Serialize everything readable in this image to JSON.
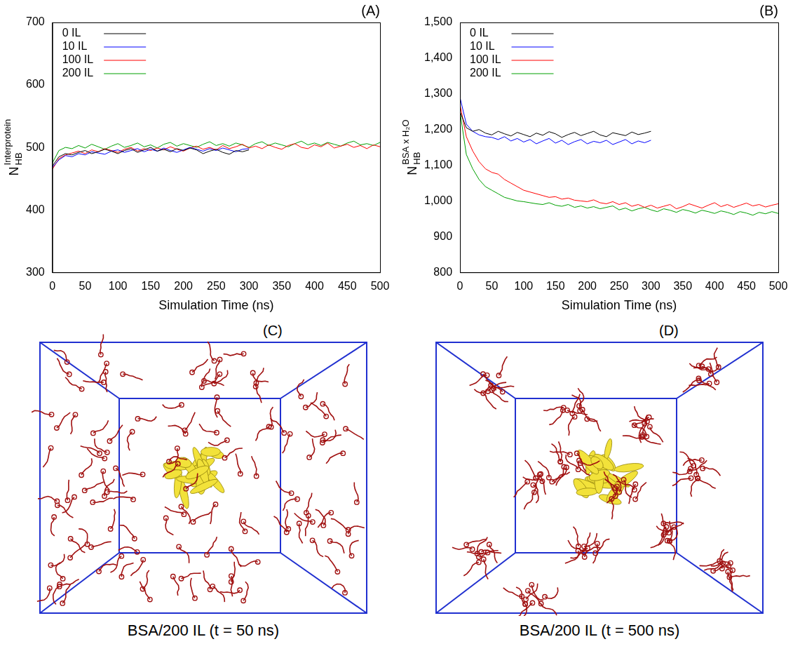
{
  "chart_data": [
    {
      "panel_label": "(A)",
      "type": "line",
      "x_label": "Simulation Time (ns)",
      "y_label": {
        "base": "N",
        "sub": "HB",
        "sup": "Interprotein"
      },
      "x": [
        0,
        10,
        20,
        30,
        40,
        50,
        60,
        70,
        80,
        90,
        100,
        110,
        120,
        130,
        140,
        150,
        160,
        170,
        180,
        190,
        200,
        210,
        220,
        230,
        240,
        250,
        260,
        270,
        280,
        290,
        300,
        310,
        320,
        330,
        340,
        350,
        360,
        370,
        380,
        390,
        400,
        410,
        420,
        430,
        440,
        450,
        460,
        470,
        480,
        490,
        500
      ],
      "xlim": [
        0,
        500
      ],
      "xticks": [
        0,
        50,
        100,
        150,
        200,
        250,
        300,
        350,
        400,
        450,
        500
      ],
      "ylim": [
        300,
        700
      ],
      "yticks": [
        300,
        400,
        500,
        600,
        700
      ],
      "grid": false,
      "legend": "top-left",
      "series": [
        {
          "name": "0 IL",
          "color": "#000000",
          "values": [
            470,
            485,
            490,
            488,
            492,
            495,
            490,
            493,
            497,
            494,
            490,
            495,
            498,
            492,
            496,
            500,
            494,
            497,
            493,
            498,
            495,
            499,
            496,
            490,
            494,
            497,
            492,
            489,
            495,
            493,
            496,
            null,
            null,
            null,
            null,
            null,
            null,
            null,
            null,
            null,
            null,
            null,
            null,
            null,
            null,
            null,
            null,
            null,
            null,
            null,
            null
          ]
        },
        {
          "name": "10 IL",
          "color": "#0000ff",
          "values": [
            468,
            480,
            487,
            485,
            490,
            488,
            493,
            491,
            489,
            494,
            496,
            492,
            495,
            498,
            493,
            497,
            494,
            499,
            495,
            492,
            496,
            500,
            497,
            494,
            498,
            495,
            499,
            496,
            493,
            497,
            498,
            null,
            null,
            null,
            null,
            null,
            null,
            null,
            null,
            null,
            null,
            null,
            null,
            null,
            null,
            null,
            null,
            null,
            null,
            null,
            null
          ]
        },
        {
          "name": "100 IL",
          "color": "#ff0000",
          "values": [
            465,
            482,
            488,
            491,
            494,
            490,
            496,
            493,
            498,
            495,
            492,
            497,
            500,
            494,
            498,
            495,
            499,
            496,
            501,
            497,
            494,
            499,
            502,
            497,
            500,
            496,
            503,
            498,
            501,
            505,
            499,
            502,
            498,
            504,
            500,
            497,
            503,
            506,
            500,
            498,
            504,
            501,
            507,
            499,
            502,
            505,
            500,
            503,
            498,
            504,
            501
          ]
        },
        {
          "name": "200 IL",
          "color": "#00a000",
          "values": [
            475,
            495,
            500,
            498,
            503,
            499,
            505,
            501,
            497,
            502,
            506,
            500,
            503,
            507,
            501,
            504,
            499,
            505,
            508,
            502,
            506,
            503,
            500,
            505,
            509,
            503,
            506,
            502,
            507,
            504,
            500,
            506,
            509,
            503,
            507,
            504,
            501,
            506,
            510,
            504,
            507,
            503,
            508,
            505,
            502,
            507,
            510,
            504,
            506,
            503,
            508
          ]
        }
      ]
    },
    {
      "panel_label": "(B)",
      "type": "line",
      "x_label": "Simulation Time (ns)",
      "y_label": {
        "base": "N",
        "sub": "HB",
        "sup": "BSA x H₂O"
      },
      "x": [
        0,
        10,
        20,
        30,
        40,
        50,
        60,
        70,
        80,
        90,
        100,
        110,
        120,
        130,
        140,
        150,
        160,
        170,
        180,
        190,
        200,
        210,
        220,
        230,
        240,
        250,
        260,
        270,
        280,
        290,
        300,
        310,
        320,
        330,
        340,
        350,
        360,
        370,
        380,
        390,
        400,
        410,
        420,
        430,
        440,
        450,
        460,
        470,
        480,
        490,
        500
      ],
      "xlim": [
        0,
        500
      ],
      "xticks": [
        0,
        50,
        100,
        150,
        200,
        250,
        300,
        350,
        400,
        450,
        500
      ],
      "ylim": [
        800,
        1500
      ],
      "yticks": [
        800,
        900,
        1000,
        1100,
        1200,
        1300,
        1400,
        1500
      ],
      "grid": false,
      "legend": "top-left",
      "series": [
        {
          "name": "0 IL",
          "color": "#000000",
          "values": [
            1250,
            1205,
            1195,
            1200,
            1190,
            1185,
            1195,
            1188,
            1182,
            1192,
            1186,
            1180,
            1190,
            1184,
            1194,
            1188,
            1178,
            1186,
            1192,
            1183,
            1189,
            1195,
            1185,
            1180,
            1191,
            1187,
            1183,
            1193,
            1186,
            1190,
            1195,
            null,
            null,
            null,
            null,
            null,
            null,
            null,
            null,
            null,
            null,
            null,
            null,
            null,
            null,
            null,
            null,
            null,
            null,
            null,
            null
          ]
        },
        {
          "name": "10 IL",
          "color": "#0000ff",
          "values": [
            1290,
            1215,
            1195,
            1185,
            1180,
            1178,
            1172,
            1180,
            1168,
            1175,
            1165,
            1172,
            1160,
            1168,
            1175,
            1162,
            1170,
            1158,
            1166,
            1172,
            1160,
            1167,
            1163,
            1170,
            1158,
            1165,
            1172,
            1160,
            1168,
            1163,
            1170,
            null,
            null,
            null,
            null,
            null,
            null,
            null,
            null,
            null,
            null,
            null,
            null,
            null,
            null,
            null,
            null,
            null,
            null,
            null,
            null
          ]
        },
        {
          "name": "100 IL",
          "color": "#ff0000",
          "values": [
            1270,
            1180,
            1140,
            1110,
            1090,
            1080,
            1075,
            1060,
            1050,
            1040,
            1030,
            1025,
            1020,
            1015,
            1010,
            1012,
            1005,
            1008,
            1002,
            1000,
            998,
            1003,
            995,
            992,
            998,
            990,
            995,
            985,
            990,
            982,
            988,
            980,
            985,
            990,
            978,
            984,
            992,
            986,
            980,
            988,
            995,
            984,
            990,
            982,
            988,
            994,
            986,
            990,
            983,
            988,
            992
          ]
        },
        {
          "name": "200 IL",
          "color": "#00a000",
          "values": [
            1250,
            1130,
            1090,
            1060,
            1040,
            1030,
            1020,
            1010,
            1005,
            1000,
            998,
            995,
            992,
            990,
            995,
            988,
            985,
            990,
            982,
            986,
            980,
            984,
            978,
            982,
            986,
            975,
            980,
            972,
            978,
            982,
            975,
            970,
            978,
            974,
            968,
            976,
            972,
            966,
            974,
            970,
            965,
            972,
            968,
            962,
            970,
            966,
            960,
            968,
            964,
            970,
            965
          ]
        }
      ]
    }
  ],
  "images": [
    {
      "panel_label": "(C)",
      "caption": "BSA/200 IL (t = 50 ns)"
    },
    {
      "panel_label": "(D)",
      "caption": "BSA/200 IL (t = 500 ns)"
    }
  ]
}
